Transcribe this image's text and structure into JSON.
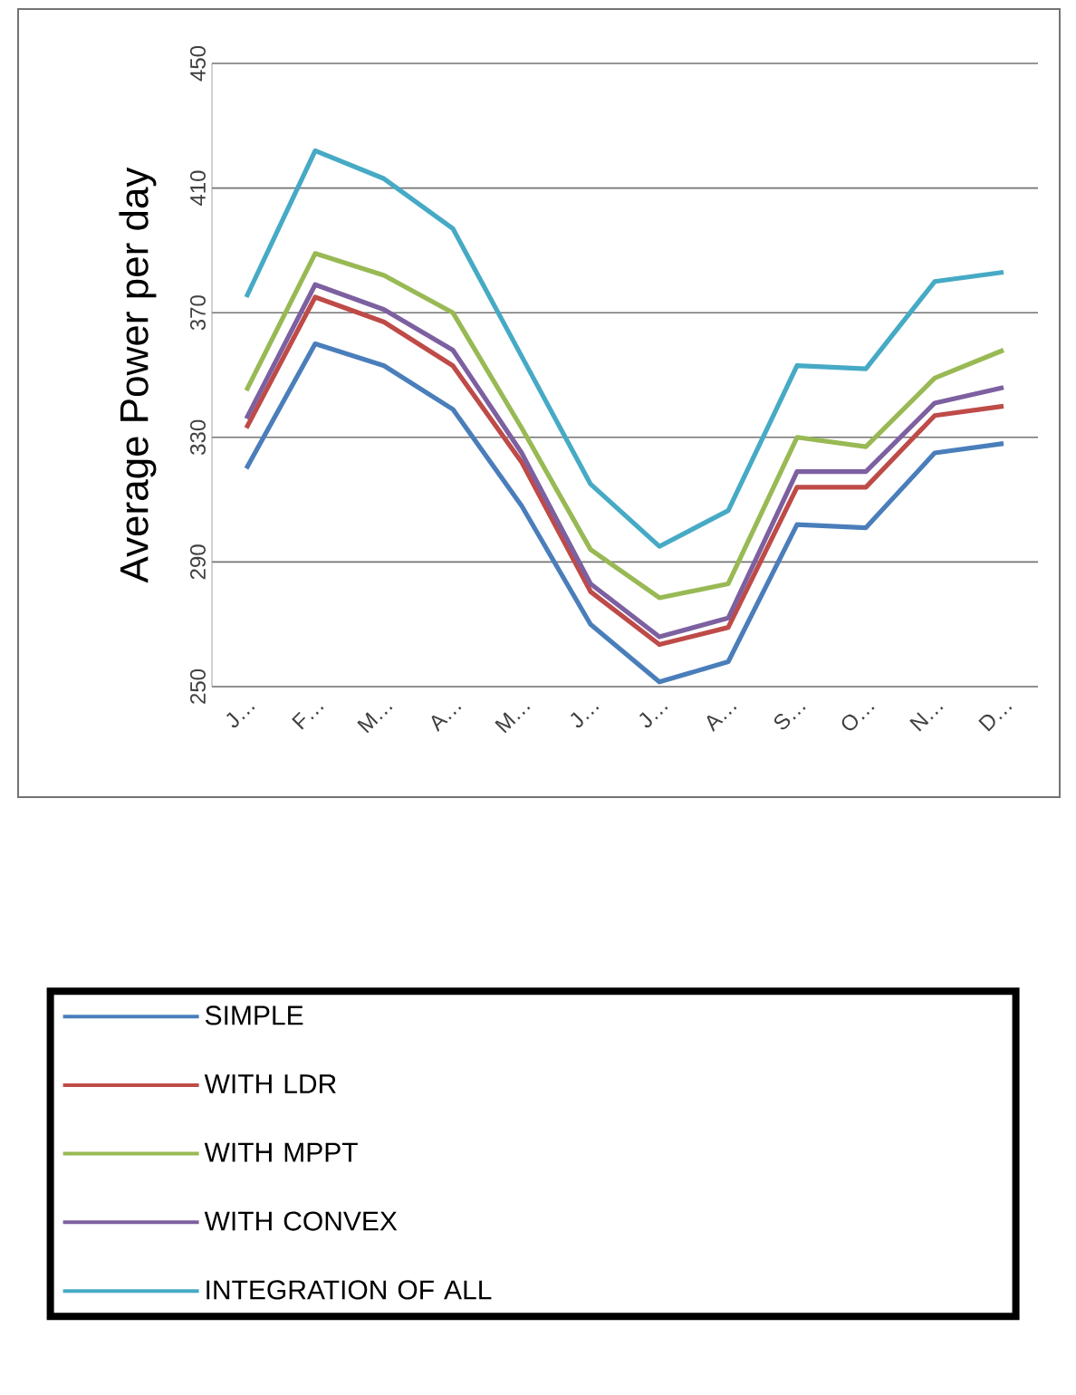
{
  "chart_data": {
    "type": "line",
    "ylabel": "Average Power per day",
    "categories": [
      "J…",
      "F…",
      "M…",
      "A…",
      "M…",
      "J…",
      "J…",
      "A…",
      "S…",
      "O…",
      "N…",
      "D…"
    ],
    "ylim": [
      250,
      450
    ],
    "yticks": [
      250,
      290,
      330,
      370,
      410,
      450
    ],
    "grid": "y",
    "legend": "bottom",
    "marker": "none",
    "line_style": "solid",
    "series": [
      {
        "name": "SIMPLE",
        "color": "#4a7ebb",
        "values": [
          320,
          360,
          353,
          339,
          308,
          270,
          251.5,
          258,
          302,
          301,
          325,
          328
        ]
      },
      {
        "name": "WITH LDR",
        "color": "#be4b48",
        "values": [
          333,
          375,
          367,
          353,
          322,
          280.5,
          263.5,
          269,
          314,
          314,
          337,
          340
        ]
      },
      {
        "name": "WITH MPPT",
        "color": "#98b954",
        "values": [
          345,
          389,
          382,
          370,
          333,
          294,
          278.5,
          283,
          330,
          327,
          349,
          358
        ]
      },
      {
        "name": "WITH CONVEX",
        "color": "#7d60a0",
        "values": [
          336,
          379,
          371,
          358,
          325,
          283,
          266,
          272,
          319,
          319,
          341,
          346
        ]
      },
      {
        "name": "INTEGRATION  OF ALL",
        "color": "#46aac5",
        "values": [
          375,
          422,
          413,
          397,
          356,
          315,
          295,
          306.5,
          353,
          352,
          380,
          383
        ]
      }
    ]
  }
}
